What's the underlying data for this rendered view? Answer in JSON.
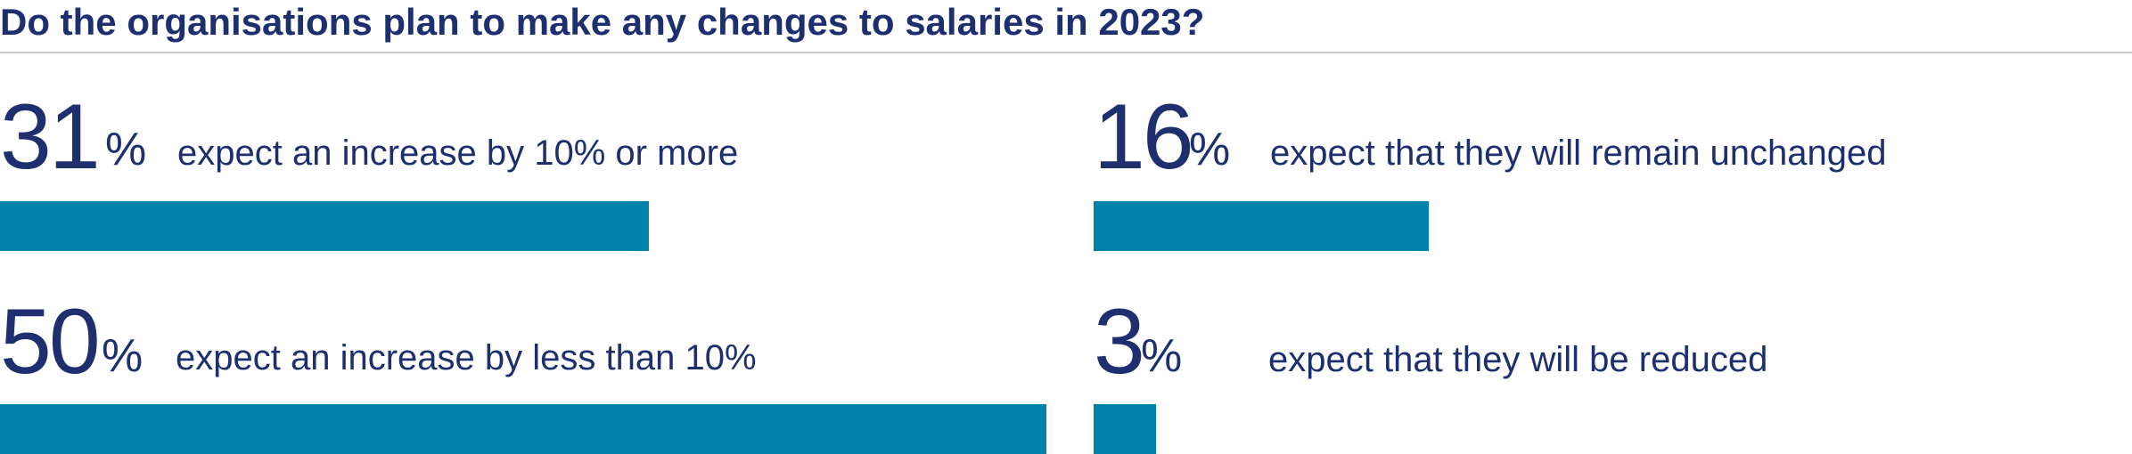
{
  "chart_data": {
    "type": "bar",
    "title": "Do the organisations plan to make any changes to salaries in 2023?",
    "unit_symbol": "%",
    "series": [
      {
        "values": [
          31,
          50,
          16,
          3
        ]
      }
    ],
    "categories": [
      "expect an increase by 10% or more",
      "expect an increase by less than 10%",
      "expect that they will remain unchanged",
      "expect that they will be reduced"
    ],
    "items": [
      {
        "value": 31,
        "value_label": "31",
        "label": "expect an increase by 10% or more"
      },
      {
        "value": 50,
        "value_label": "50",
        "label": "expect an increase by less than 10%"
      },
      {
        "value": 16,
        "value_label": "16",
        "label": "expect that they will remain unchanged"
      },
      {
        "value": 3,
        "value_label": "3",
        "label": "expect that they will be reduced"
      }
    ],
    "xlim": [
      0,
      100
    ],
    "grid": false,
    "legend": "none",
    "colors": {
      "bar": "#0083ab",
      "text": "#1d2f6f",
      "rule": "#c9ccd3"
    }
  }
}
